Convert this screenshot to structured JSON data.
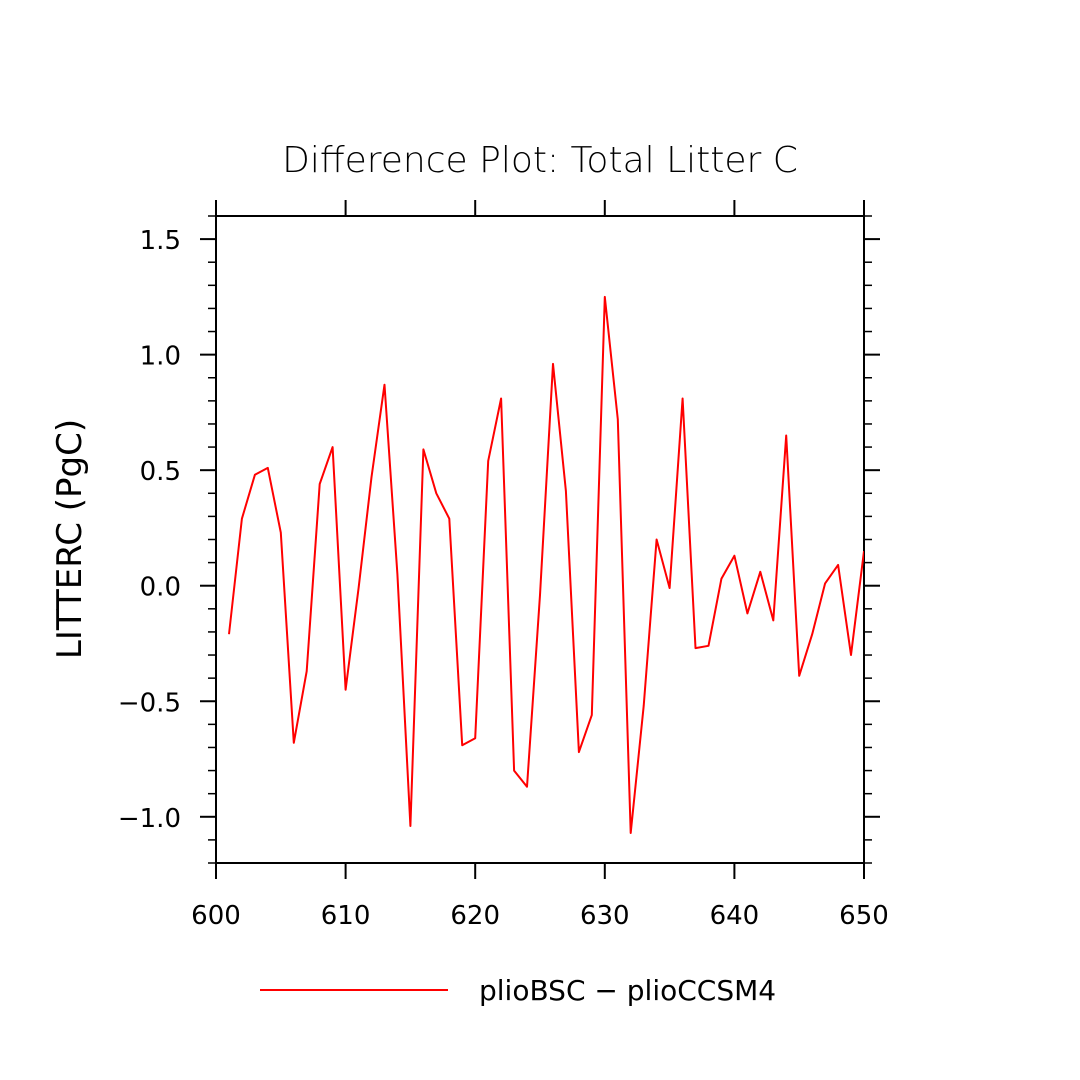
{
  "chart_data": {
    "type": "line",
    "title": "Difference Plot: Total Litter C",
    "xlabel": "",
    "ylabel": "LITTERC  (PgC)",
    "xlim": [
      600,
      650
    ],
    "ylim": [
      -1.2,
      1.6
    ],
    "xticks": [
      600,
      610,
      620,
      630,
      640,
      650
    ],
    "xtick_labels": [
      "600",
      "610",
      "620",
      "630",
      "640",
      "650"
    ],
    "yticks": [
      -1.0,
      -0.5,
      0.0,
      0.5,
      1.0,
      1.5
    ],
    "ytick_labels": [
      "−1.0",
      "−0.5",
      "0.0",
      "0.5",
      "1.0",
      "1.5"
    ],
    "grid": false,
    "legend_position": "bottom",
    "series": [
      {
        "name": "plioBSC − plioCCSM4",
        "color": "#ff0000",
        "x": [
          601,
          602,
          603,
          604,
          605,
          606,
          607,
          608,
          609,
          610,
          611,
          612,
          613,
          614,
          615,
          616,
          617,
          618,
          619,
          620,
          621,
          622,
          623,
          624,
          625,
          626,
          627,
          628,
          629,
          630,
          631,
          632,
          633,
          634,
          635,
          636,
          637,
          638,
          639,
          640,
          641,
          642,
          643,
          644,
          645,
          646,
          647,
          648,
          649,
          650
        ],
        "y": [
          -0.21,
          0.29,
          0.48,
          0.51,
          0.23,
          -0.68,
          -0.37,
          0.44,
          0.6,
          -0.45,
          -0.01,
          0.47,
          0.87,
          0.05,
          -1.04,
          0.59,
          0.4,
          0.29,
          -0.69,
          -0.66,
          0.54,
          0.81,
          -0.8,
          -0.87,
          -0.04,
          0.96,
          0.41,
          -0.72,
          -0.56,
          1.25,
          0.72,
          -1.07,
          -0.52,
          0.2,
          -0.01,
          0.81,
          -0.27,
          -0.26,
          0.03,
          0.13,
          -0.12,
          0.06,
          -0.15,
          0.65,
          -0.39,
          -0.21,
          0.01,
          0.09,
          -0.3,
          0.15
        ]
      }
    ]
  }
}
